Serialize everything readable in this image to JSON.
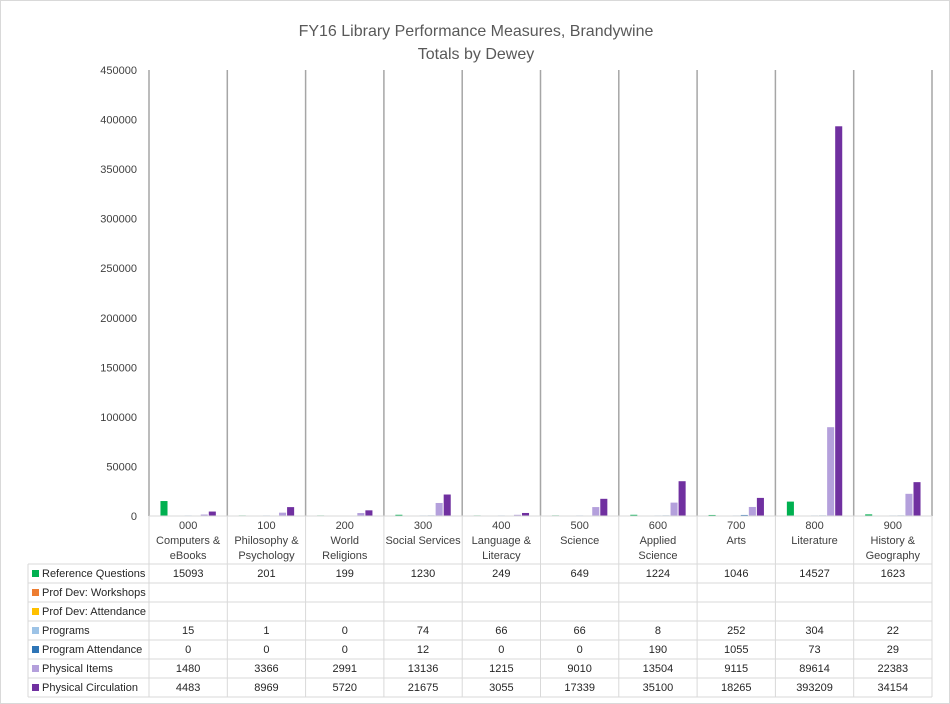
{
  "chart_data": {
    "type": "bar",
    "title": "FY16 Library Performance Measures, Brandywine",
    "subtitle": "Totals by Dewey",
    "ylim": [
      0,
      450000
    ],
    "yticks": [
      0,
      50000,
      100000,
      150000,
      200000,
      250000,
      300000,
      350000,
      400000,
      450000
    ],
    "grid": "vertical category separators",
    "legend": "data table",
    "categories": [
      [
        "000",
        "Computers &",
        "eBooks"
      ],
      [
        "100",
        "Philosophy &",
        "Psychology"
      ],
      [
        "200",
        "World",
        "Religions"
      ],
      [
        "300",
        "Social Services"
      ],
      [
        "400",
        "Language &",
        "Literacy"
      ],
      [
        "500",
        "Science"
      ],
      [
        "600",
        "Applied",
        "Science"
      ],
      [
        "700",
        "Arts"
      ],
      [
        "800",
        "Literature"
      ],
      [
        "900",
        "History &",
        "Geography"
      ]
    ],
    "series": [
      {
        "name": "Reference Questions",
        "color": "#00B050",
        "values": [
          15093,
          201,
          199,
          1230,
          249,
          649,
          1224,
          1046,
          14527,
          1623
        ]
      },
      {
        "name": "Prof Dev: Workshops",
        "color": "#ED7D31",
        "values": [
          null,
          null,
          null,
          null,
          null,
          null,
          null,
          null,
          null,
          null
        ]
      },
      {
        "name": "Prof Dev: Attendance",
        "color": "#FFC000",
        "values": [
          null,
          null,
          null,
          null,
          null,
          null,
          null,
          null,
          null,
          null
        ]
      },
      {
        "name": "Programs",
        "color": "#9DC3E6",
        "values": [
          15,
          1,
          0,
          74,
          66,
          66,
          8,
          252,
          304,
          22
        ]
      },
      {
        "name": "Program Attendance",
        "color": "#2E75B6",
        "values": [
          0,
          0,
          0,
          12,
          0,
          0,
          190,
          1055,
          73,
          29
        ]
      },
      {
        "name": "Physical Items",
        "color": "#B4A0DC",
        "values": [
          1480,
          3366,
          2991,
          13136,
          1215,
          9010,
          13504,
          9115,
          89614,
          22383
        ]
      },
      {
        "name": "Physical Circulation",
        "color": "#7030A0",
        "values": [
          4483,
          8969,
          5720,
          21675,
          3055,
          17339,
          35100,
          18265,
          393209,
          34154
        ]
      }
    ]
  }
}
